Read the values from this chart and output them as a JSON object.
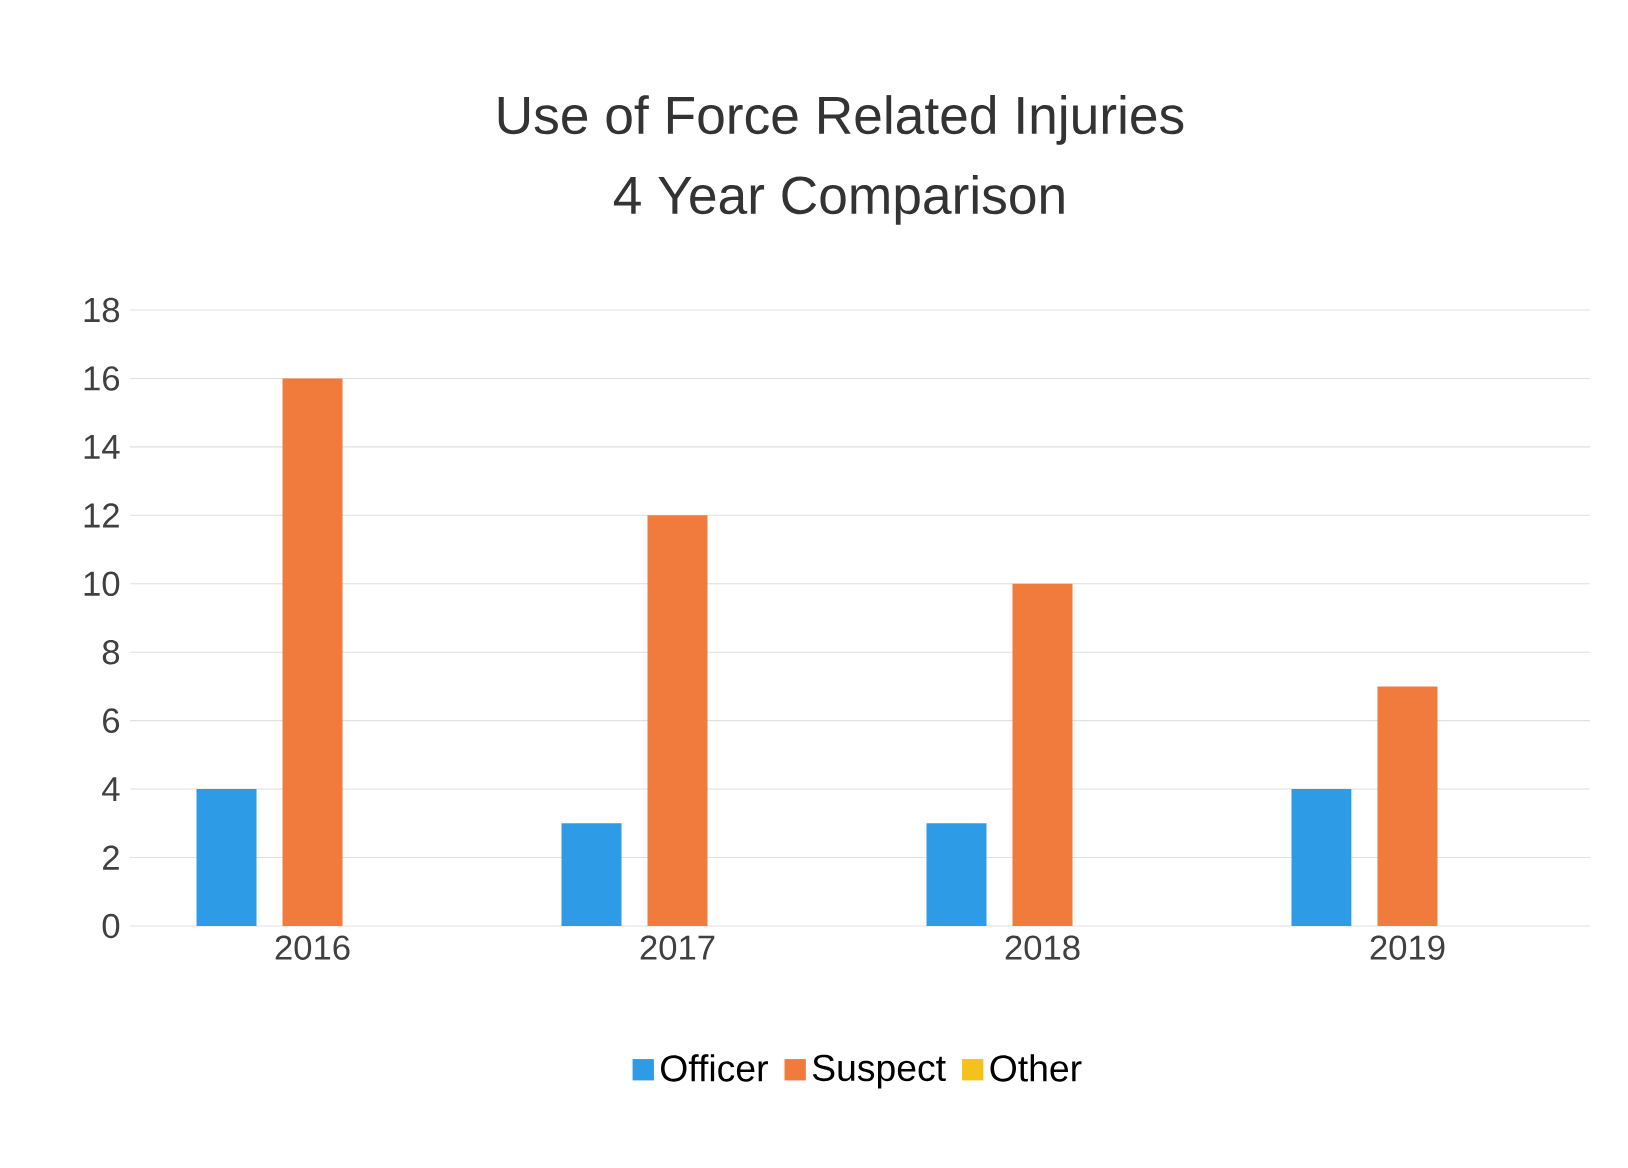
{
  "chart_data": {
    "type": "bar",
    "title": "Use of Force Related Injuries",
    "subtitle": "4 Year Comparison",
    "categories": [
      "2016",
      "2017",
      "2018",
      "2019"
    ],
    "series": [
      {
        "name": "Officer",
        "color": "#2e9be6",
        "values": [
          4,
          3,
          3,
          4
        ]
      },
      {
        "name": "Suspect",
        "color": "#f07b3c",
        "values": [
          16,
          12,
          10,
          7
        ]
      },
      {
        "name": "Other",
        "color": "#f5c21b",
        "values": [
          0,
          0,
          0,
          0
        ]
      }
    ],
    "ylim": [
      0,
      18
    ],
    "yticks": [
      0,
      2,
      4,
      6,
      8,
      10,
      12,
      14,
      16,
      18
    ],
    "grid": "y",
    "legend": "bottom"
  }
}
